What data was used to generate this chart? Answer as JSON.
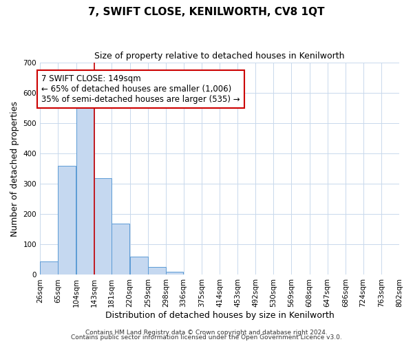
{
  "title": "7, SWIFT CLOSE, KENILWORTH, CV8 1QT",
  "subtitle": "Size of property relative to detached houses in Kenilworth",
  "xlabel": "Distribution of detached houses by size in Kenilworth",
  "ylabel": "Number of detached properties",
  "bin_edges": [
    26,
    65,
    104,
    143,
    181,
    220,
    259,
    298,
    336,
    375,
    414,
    453,
    492,
    530,
    569,
    608,
    647,
    686,
    724,
    763,
    802
  ],
  "bar_heights": [
    45,
    360,
    560,
    318,
    168,
    60,
    25,
    10,
    2,
    0,
    0,
    0,
    0,
    2,
    0,
    0,
    0,
    0,
    0,
    2
  ],
  "bar_color": "#c5d8f0",
  "bar_edge_color": "#5b9bd5",
  "vline_x": 143,
  "vline_color": "#cc0000",
  "annotation_line1": "7 SWIFT CLOSE: 149sqm",
  "annotation_line2": "← 65% of detached houses are smaller (1,006)",
  "annotation_line3": "35% of semi-detached houses are larger (535) →",
  "annotation_box_color": "#ffffff",
  "annotation_box_edge_color": "#cc0000",
  "ylim": [
    0,
    700
  ],
  "yticks": [
    0,
    100,
    200,
    300,
    400,
    500,
    600,
    700
  ],
  "xtick_labels": [
    "26sqm",
    "65sqm",
    "104sqm",
    "143sqm",
    "181sqm",
    "220sqm",
    "259sqm",
    "298sqm",
    "336sqm",
    "375sqm",
    "414sqm",
    "453sqm",
    "492sqm",
    "530sqm",
    "569sqm",
    "608sqm",
    "647sqm",
    "686sqm",
    "724sqm",
    "763sqm",
    "802sqm"
  ],
  "footnote1": "Contains HM Land Registry data © Crown copyright and database right 2024.",
  "footnote2": "Contains public sector information licensed under the Open Government Licence v3.0.",
  "bg_color": "#ffffff",
  "grid_color": "#c8d8ec",
  "title_fontsize": 11,
  "subtitle_fontsize": 9,
  "axis_label_fontsize": 9,
  "tick_fontsize": 7.5,
  "annotation_fontsize": 8.5,
  "footnote_fontsize": 6.5
}
